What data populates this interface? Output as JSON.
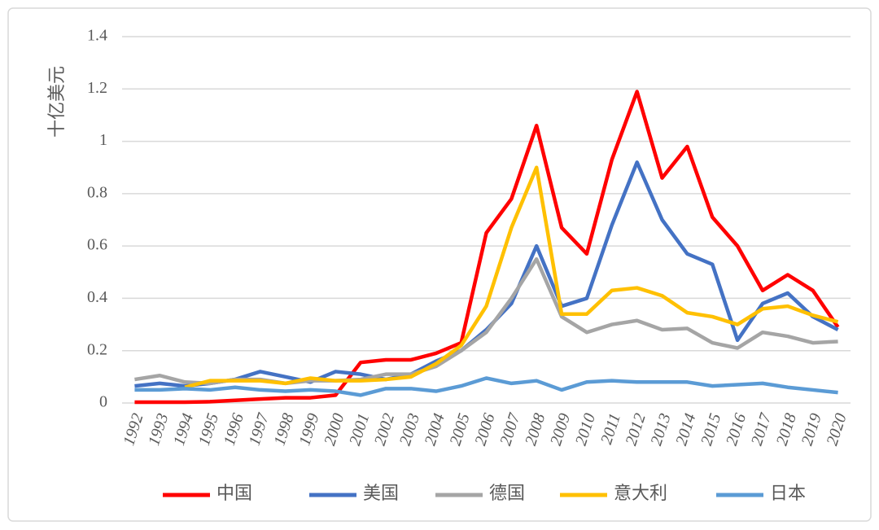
{
  "chart_data": {
    "type": "line",
    "y_label": "十亿美元",
    "categories": [
      "1992",
      "1993",
      "1994",
      "1995",
      "1996",
      "1997",
      "1998",
      "1999",
      "2000",
      "2001",
      "2002",
      "2003",
      "2004",
      "2005",
      "2006",
      "2007",
      "2008",
      "2009",
      "2010",
      "2011",
      "2012",
      "2013",
      "2014",
      "2015",
      "2016",
      "2017",
      "2018",
      "2019",
      "2020"
    ],
    "series": [
      {
        "name": "中国",
        "color": "#ff0000",
        "values": [
          0.003,
          0.003,
          0.003,
          0.005,
          0.01,
          0.015,
          0.02,
          0.02,
          0.03,
          0.155,
          0.165,
          0.165,
          0.19,
          0.23,
          0.65,
          0.78,
          1.06,
          0.67,
          0.57,
          0.93,
          1.19,
          0.86,
          0.98,
          0.71,
          0.6,
          0.43,
          0.49,
          0.43,
          0.29
        ]
      },
      {
        "name": "美国",
        "color": "#4472c4",
        "values": [
          0.065,
          0.075,
          0.065,
          0.075,
          0.09,
          0.12,
          0.1,
          0.08,
          0.12,
          0.11,
          0.09,
          0.11,
          0.16,
          0.2,
          0.28,
          0.38,
          0.6,
          0.37,
          0.4,
          0.68,
          0.92,
          0.7,
          0.57,
          0.53,
          0.24,
          0.38,
          0.42,
          0.33,
          0.28
        ]
      },
      {
        "name": "德国",
        "color": "#a5a5a5",
        "values": [
          0.09,
          0.105,
          0.08,
          0.075,
          0.09,
          0.09,
          0.075,
          0.085,
          0.085,
          0.09,
          0.11,
          0.11,
          0.14,
          0.2,
          0.27,
          0.4,
          0.55,
          0.33,
          0.27,
          0.3,
          0.315,
          0.28,
          0.285,
          0.23,
          0.21,
          0.27,
          0.255,
          0.23,
          0.235
        ]
      },
      {
        "name": "意大利",
        "color": "#ffc000",
        "values": [
          null,
          null,
          0.06,
          0.085,
          0.085,
          0.085,
          0.075,
          0.095,
          0.085,
          0.085,
          0.09,
          0.1,
          0.15,
          0.22,
          0.37,
          0.67,
          0.9,
          0.34,
          0.34,
          0.43,
          0.44,
          0.41,
          0.345,
          0.33,
          0.3,
          0.36,
          0.37,
          0.335,
          0.31
        ]
      },
      {
        "name": "日本",
        "color": "#5b9bd5",
        "values": [
          0.05,
          0.05,
          0.055,
          0.05,
          0.06,
          0.05,
          0.045,
          0.05,
          0.045,
          0.03,
          0.055,
          0.055,
          0.045,
          0.065,
          0.095,
          0.075,
          0.085,
          0.05,
          0.08,
          0.085,
          0.08,
          0.08,
          0.08,
          0.065,
          0.07,
          0.075,
          0.06,
          0.05,
          0.04
        ]
      }
    ],
    "ylim": [
      0,
      1.4
    ],
    "yticks": [
      0,
      0.2,
      0.4,
      0.6,
      0.8,
      1,
      1.2,
      1.4
    ],
    "grid": true,
    "legend": "bottom"
  }
}
